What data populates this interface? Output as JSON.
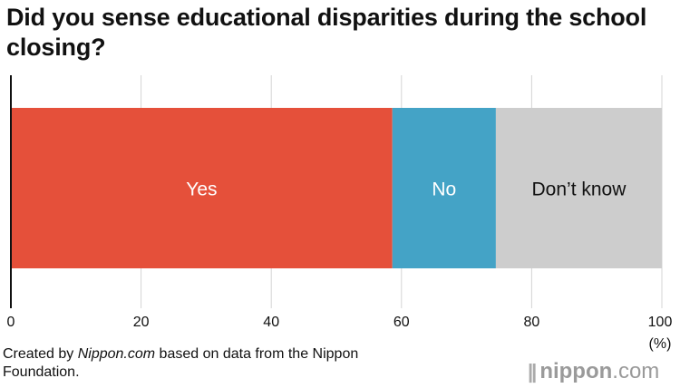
{
  "title": "Did you sense educational disparities during the school closing?",
  "caption": {
    "prefix": "Created by ",
    "source": "Nippon.com",
    "suffix": " based on data from the Nippon Foundation."
  },
  "logo": {
    "mark": "||",
    "name": "nippon",
    "dot": ".",
    "tld": "com"
  },
  "chart_data": {
    "type": "bar",
    "orientation": "horizontal-stacked",
    "xlim": [
      0,
      100
    ],
    "x_ticks": [
      0,
      20,
      40,
      60,
      80,
      100
    ],
    "unit_label": "(%)",
    "grid": true,
    "segments": [
      {
        "name": "Yes",
        "value": 58.6,
        "color": "#e5503a",
        "label_color": "#ffffff"
      },
      {
        "name": "No",
        "value": 15.9,
        "color": "#44a3c6",
        "label_color": "#ffffff"
      },
      {
        "name": "Don’t know",
        "value": 25.5,
        "color": "#cdcdcd",
        "label_color": "#111111"
      }
    ]
  }
}
